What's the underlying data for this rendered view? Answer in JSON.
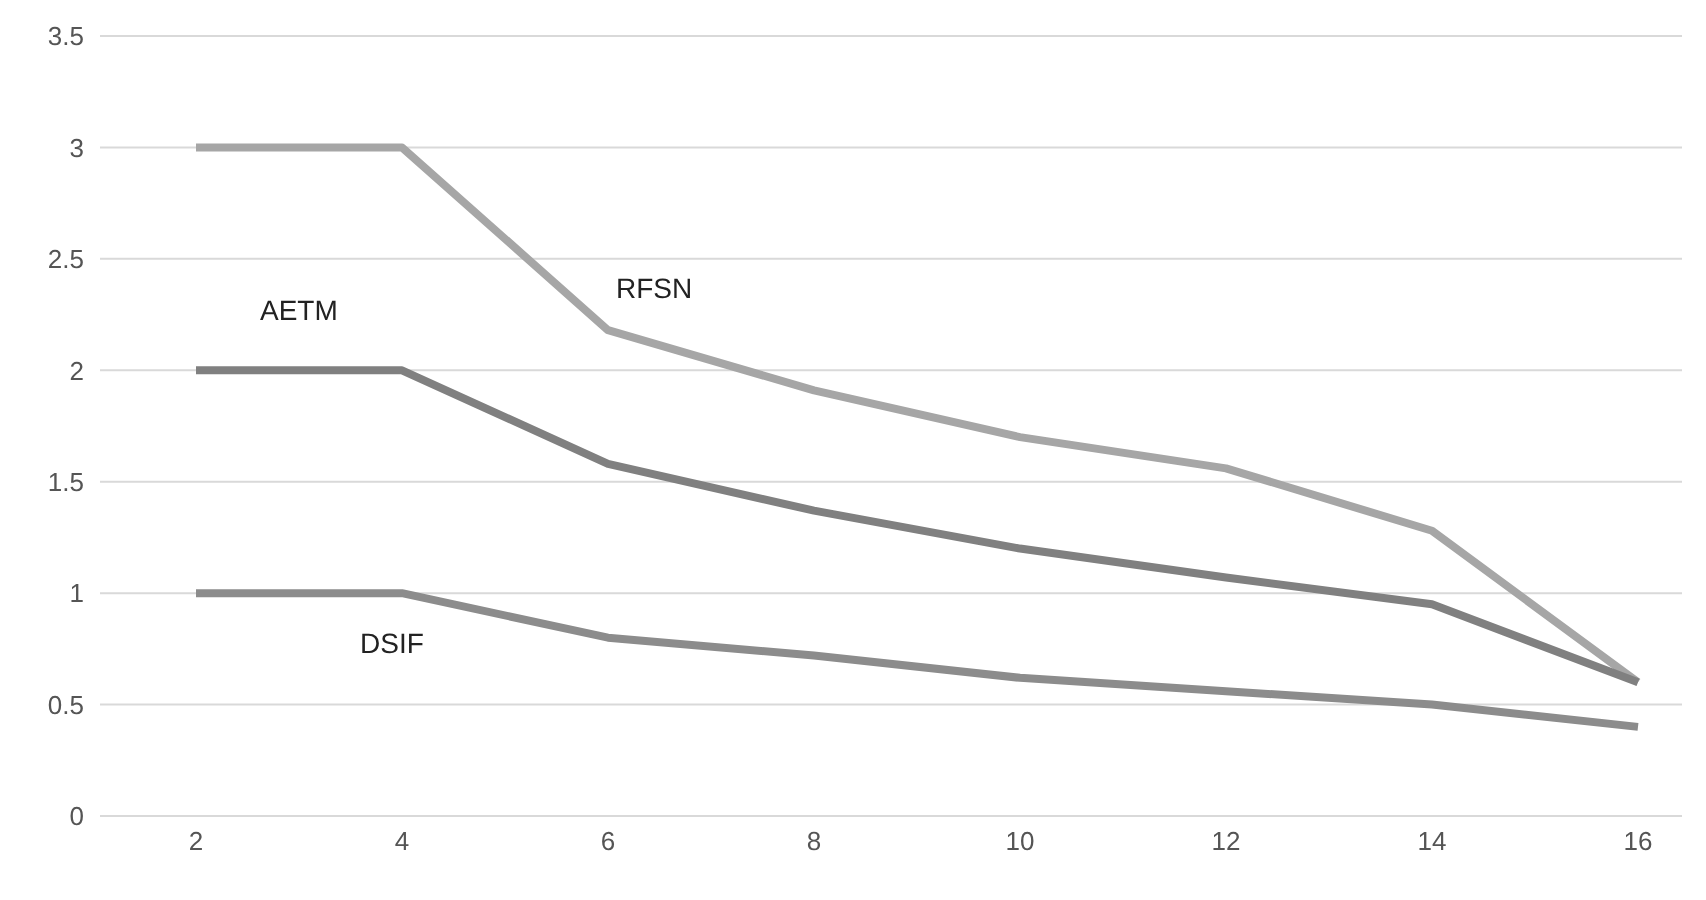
{
  "chart_data": {
    "type": "line",
    "categories": [
      "2",
      "4",
      "6",
      "8",
      "10",
      "12",
      "14",
      "16"
    ],
    "series": [
      {
        "name": "RFSN",
        "color": "#a6a6a6",
        "values": [
          3,
          3,
          2.18,
          1.91,
          1.7,
          1.56,
          1.28,
          0.6
        ]
      },
      {
        "name": "AETM",
        "color": "#808080",
        "values": [
          2,
          2,
          1.58,
          1.37,
          1.2,
          1.07,
          0.95,
          0.6
        ]
      },
      {
        "name": "DSIF",
        "color": "#8c8c8c",
        "values": [
          1,
          1,
          0.8,
          0.72,
          0.62,
          0.56,
          0.5,
          0.4
        ]
      }
    ],
    "ylim": [
      0,
      3.5
    ],
    "yticks": [
      0,
      0.5,
      1,
      1.5,
      2,
      2.5,
      3,
      3.5
    ],
    "grid": "y",
    "legend": false,
    "marker": "none",
    "line_style": "solid"
  }
}
